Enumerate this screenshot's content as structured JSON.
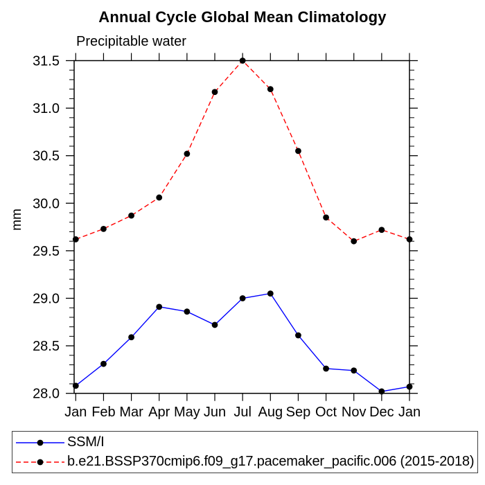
{
  "chart_data": {
    "type": "line",
    "title": "Annual Cycle Global Mean Climatology",
    "subtitle": "Precipitable water",
    "ylabel": "mm",
    "xlabel": "",
    "categories": [
      "Jan",
      "Feb",
      "Mar",
      "Apr",
      "May",
      "Jun",
      "Jul",
      "Aug",
      "Sep",
      "Oct",
      "Nov",
      "Dec",
      "Jan"
    ],
    "ylim": [
      28.0,
      31.5
    ],
    "ytick_interval": 0.5,
    "yminor_interval": 0.1,
    "ytick_labels": [
      "31.5",
      "31.0",
      "30.5",
      "30.0",
      "29.5",
      "29.0",
      "28.5",
      "28.0"
    ],
    "grid": false,
    "legend_position": "bottom-box",
    "axis_color": "#000000",
    "marker_color": "#000000",
    "series": [
      {
        "name": "SSM/I",
        "color": "#0000ff",
        "line_style": "solid",
        "marker": "filled-circle",
        "values": [
          28.08,
          28.31,
          28.59,
          28.91,
          28.86,
          28.72,
          29.0,
          29.05,
          28.61,
          28.26,
          28.24,
          28.02,
          28.07
        ]
      },
      {
        "name": "b.e21.BSSP370cmip6.f09_g17.pacemaker_pacific.006 (2015-2018)",
        "color": "#ff0000",
        "line_style": "dashed",
        "marker": "filled-circle",
        "values": [
          29.62,
          29.73,
          29.87,
          30.06,
          30.52,
          31.17,
          31.5,
          31.2,
          30.55,
          29.85,
          29.6,
          29.72,
          29.62
        ]
      }
    ]
  }
}
